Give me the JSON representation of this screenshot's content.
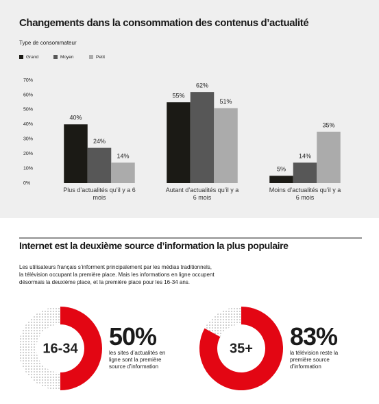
{
  "chart_data": [
    {
      "type": "bar",
      "title": "Changements dans la consommation des contenus d’actualité",
      "legend_title": "Type de consommateur",
      "categories": [
        "Plus d’actualités qu’il y a 6 mois",
        "Autant d’actualités qu’il y a 6 mois",
        "Moins d’actualités qu’il y a 6 mois"
      ],
      "series": [
        {
          "name": "Grand",
          "color": "#1b1a15",
          "values": [
            40,
            55,
            5
          ],
          "value_labels": [
            "40%",
            "55%",
            "5%"
          ]
        },
        {
          "name": "Moyen",
          "color": "#575757",
          "values": [
            24,
            62,
            14
          ],
          "value_labels": [
            "24%",
            "62%",
            "14%"
          ]
        },
        {
          "name": "Petit",
          "color": "#ababab",
          "values": [
            14,
            51,
            35
          ],
          "value_labels": [
            "14%",
            "51%",
            "35%"
          ]
        }
      ],
      "ylim": [
        0,
        70
      ],
      "yticks": [
        {
          "value": 0,
          "label": "0%"
        },
        {
          "value": 10,
          "label": "10%"
        },
        {
          "value": 20,
          "label": "20%"
        },
        {
          "value": 30,
          "label": "30%"
        },
        {
          "value": 40,
          "label": "40%"
        },
        {
          "value": 50,
          "label": "50%"
        },
        {
          "value": 60,
          "label": "60%"
        },
        {
          "value": 70,
          "label": "70%"
        }
      ],
      "grid": false
    },
    {
      "type": "donut",
      "label": "16-34",
      "values": [
        50
      ],
      "value_labels": [
        "50%"
      ],
      "color": "#e30613",
      "caption": "les sites d’actualités en ligne sont la première source d’information"
    },
    {
      "type": "donut",
      "label": "35+",
      "values": [
        83
      ],
      "value_labels": [
        "83%"
      ],
      "color": "#e30613",
      "caption": "la télévision reste la première source d’information"
    }
  ],
  "section": {
    "title": "Internet est la deuxième source d’information la plus populaire",
    "text": "Les utilisateurs français s’informent principalement par les médias traditionnels, la télévision occupant la première place. Mais les informations en ligne occupent désormais la deuxième place, et la première place pour les 16-34 ans."
  }
}
